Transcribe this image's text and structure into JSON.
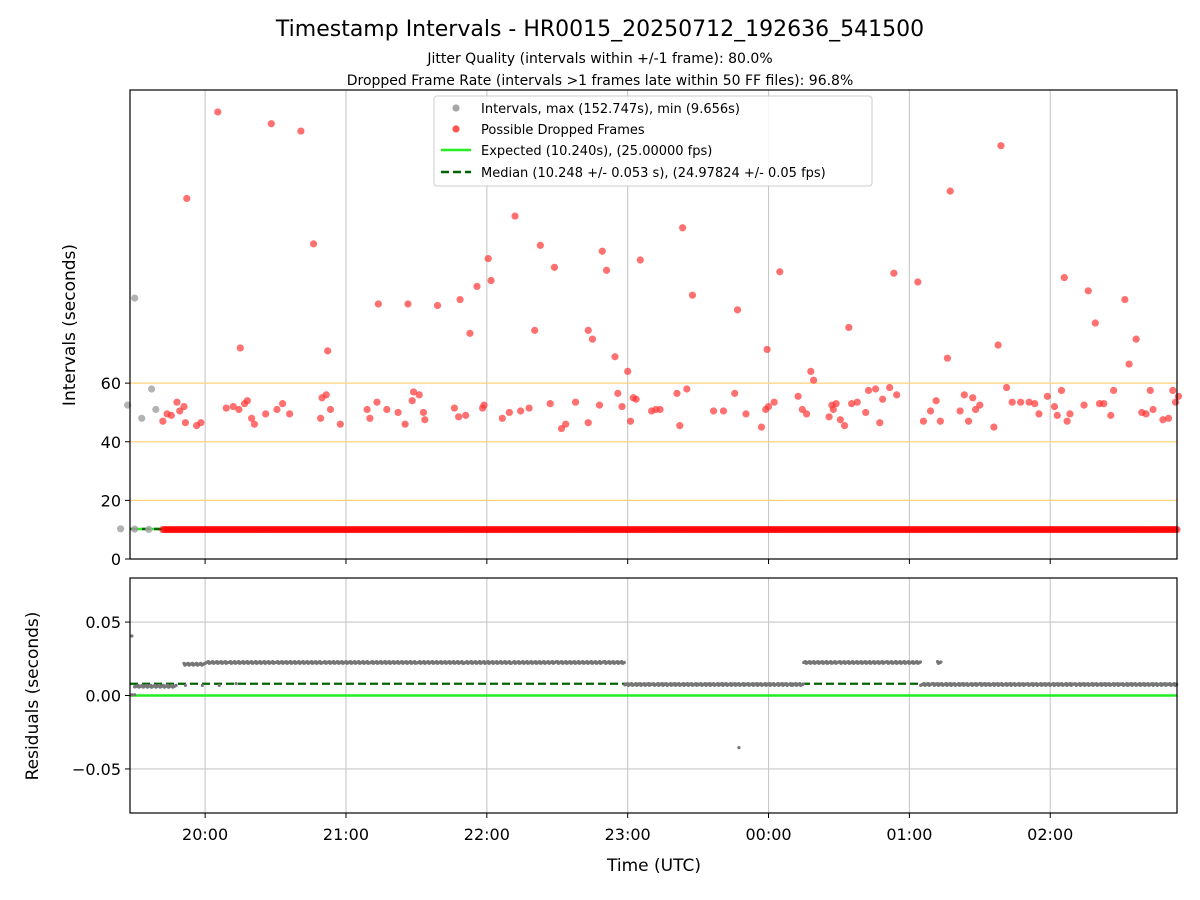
{
  "chart_data": [
    {
      "type": "scatter",
      "panel": "intervals",
      "title": "Timestamp Intervals - HR0015_20250712_192636_541500",
      "subtitle_lines": [
        "Jitter Quality (intervals within +/-1 frame): 80.0%",
        "Dropped Frame Rate (intervals >1 frames late within 50 FF files): 96.8%"
      ],
      "ylabel": "Intervals (seconds)",
      "xlabel": "",
      "x_start": "19:27",
      "x_end": "02:52",
      "xlim_hours": [
        -0.5333,
        6.9
      ],
      "ylim": [
        0,
        160
      ],
      "yticks": [
        0,
        20,
        40,
        60
      ],
      "xtick_labels": [
        "20:00",
        "21:00",
        "22:00",
        "23:00",
        "00:00",
        "01:00",
        "02:00"
      ],
      "xticks_hours": [
        0,
        1,
        2,
        3,
        4,
        5,
        6
      ],
      "grid": "vertical",
      "threshold_lines": [
        20,
        40,
        60
      ],
      "threshold_color": "#ffd27a",
      "legend_position": "upper center",
      "legend": [
        {
          "label": "Intervals, max (152.747s), min (9.656s)",
          "marker": "dot",
          "color": "#a6a6a6"
        },
        {
          "label": "Possible Dropped Frames",
          "marker": "dot",
          "color": "#ff5555"
        },
        {
          "label": "Expected (10.240s), (25.00000 fps)",
          "marker": "line",
          "color": "#22ee22"
        },
        {
          "label": "Median (10.248 +/- 0.053 s), (24.97824 +/- 0.05 fps)",
          "marker": "dashed",
          "color": "#006400"
        }
      ],
      "expected_line": 10.24,
      "median_line": 10.248,
      "normal_points": [
        {
          "x": -0.55,
          "y": 52.5
        },
        {
          "x": -0.45,
          "y": 48
        },
        {
          "x": -0.38,
          "y": 58
        },
        {
          "x": -0.35,
          "y": 51
        },
        {
          "x": -0.5,
          "y": 89
        },
        {
          "x": -0.6,
          "y": 10.3
        },
        {
          "x": -0.5,
          "y": 10.2
        },
        {
          "x": -0.4,
          "y": 10.1
        }
      ],
      "dropped_points": [
        {
          "x": -0.3,
          "y": 47
        },
        {
          "x": -0.27,
          "y": 49.5
        },
        {
          "x": -0.24,
          "y": 49
        },
        {
          "x": -0.2,
          "y": 53.5
        },
        {
          "x": -0.18,
          "y": 50.5
        },
        {
          "x": -0.15,
          "y": 52
        },
        {
          "x": -0.14,
          "y": 46.5
        },
        {
          "x": -0.13,
          "y": 123
        },
        {
          "x": -0.06,
          "y": 45.5
        },
        {
          "x": -0.03,
          "y": 46.5
        },
        {
          "x": 0.09,
          "y": 152.5
        },
        {
          "x": 0.15,
          "y": 51.5
        },
        {
          "x": 0.2,
          "y": 52
        },
        {
          "x": 0.24,
          "y": 51
        },
        {
          "x": 0.25,
          "y": 72
        },
        {
          "x": 0.28,
          "y": 53
        },
        {
          "x": 0.3,
          "y": 54
        },
        {
          "x": 0.33,
          "y": 48
        },
        {
          "x": 0.35,
          "y": 46
        },
        {
          "x": 0.43,
          "y": 49.5
        },
        {
          "x": 0.47,
          "y": 148.5
        },
        {
          "x": 0.51,
          "y": 51
        },
        {
          "x": 0.55,
          "y": 53
        },
        {
          "x": 0.6,
          "y": 49.5
        },
        {
          "x": 0.68,
          "y": 146
        },
        {
          "x": 0.77,
          "y": 107.5
        },
        {
          "x": 0.82,
          "y": 48
        },
        {
          "x": 0.83,
          "y": 55
        },
        {
          "x": 0.86,
          "y": 56
        },
        {
          "x": 0.87,
          "y": 71
        },
        {
          "x": 0.89,
          "y": 51
        },
        {
          "x": 0.96,
          "y": 46
        },
        {
          "x": 1.15,
          "y": 51
        },
        {
          "x": 1.17,
          "y": 48
        },
        {
          "x": 1.22,
          "y": 53.5
        },
        {
          "x": 1.23,
          "y": 87
        },
        {
          "x": 1.29,
          "y": 51
        },
        {
          "x": 1.37,
          "y": 50
        },
        {
          "x": 1.42,
          "y": 46
        },
        {
          "x": 1.44,
          "y": 87
        },
        {
          "x": 1.47,
          "y": 54
        },
        {
          "x": 1.48,
          "y": 57
        },
        {
          "x": 1.52,
          "y": 56
        },
        {
          "x": 1.55,
          "y": 50
        },
        {
          "x": 1.56,
          "y": 47.5
        },
        {
          "x": 1.65,
          "y": 86.5
        },
        {
          "x": 1.77,
          "y": 51.5
        },
        {
          "x": 1.8,
          "y": 48.5
        },
        {
          "x": 1.81,
          "y": 88.5
        },
        {
          "x": 1.85,
          "y": 49
        },
        {
          "x": 1.88,
          "y": 77
        },
        {
          "x": 1.93,
          "y": 93
        },
        {
          "x": 1.97,
          "y": 51.5
        },
        {
          "x": 1.98,
          "y": 52.5
        },
        {
          "x": 2.01,
          "y": 102.5
        },
        {
          "x": 2.03,
          "y": 95
        },
        {
          "x": 2.11,
          "y": 48
        },
        {
          "x": 2.16,
          "y": 50
        },
        {
          "x": 2.2,
          "y": 117
        },
        {
          "x": 2.24,
          "y": 50.5
        },
        {
          "x": 2.3,
          "y": 51.5
        },
        {
          "x": 2.34,
          "y": 78
        },
        {
          "x": 2.38,
          "y": 107
        },
        {
          "x": 2.45,
          "y": 53
        },
        {
          "x": 2.48,
          "y": 99.5
        },
        {
          "x": 2.53,
          "y": 44.5
        },
        {
          "x": 2.56,
          "y": 46
        },
        {
          "x": 2.63,
          "y": 53.5
        },
        {
          "x": 2.72,
          "y": 46.5
        },
        {
          "x": 2.72,
          "y": 78
        },
        {
          "x": 2.75,
          "y": 75
        },
        {
          "x": 2.8,
          "y": 52.5
        },
        {
          "x": 2.82,
          "y": 105
        },
        {
          "x": 2.85,
          "y": 98.5
        },
        {
          "x": 2.91,
          "y": 69
        },
        {
          "x": 2.93,
          "y": 56.5
        },
        {
          "x": 2.96,
          "y": 52
        },
        {
          "x": 3.0,
          "y": 64
        },
        {
          "x": 3.02,
          "y": 47
        },
        {
          "x": 3.04,
          "y": 55
        },
        {
          "x": 3.06,
          "y": 54.5
        },
        {
          "x": 3.09,
          "y": 102
        },
        {
          "x": 3.17,
          "y": 50.5
        },
        {
          "x": 3.2,
          "y": 51
        },
        {
          "x": 3.23,
          "y": 51
        },
        {
          "x": 3.35,
          "y": 56.5
        },
        {
          "x": 3.37,
          "y": 45.5
        },
        {
          "x": 3.39,
          "y": 113
        },
        {
          "x": 3.42,
          "y": 58
        },
        {
          "x": 3.46,
          "y": 90
        },
        {
          "x": 3.61,
          "y": 50.5
        },
        {
          "x": 3.68,
          "y": 50.5
        },
        {
          "x": 3.76,
          "y": 56.5
        },
        {
          "x": 3.78,
          "y": 85
        },
        {
          "x": 3.84,
          "y": 49.5
        },
        {
          "x": 3.95,
          "y": 45
        },
        {
          "x": 3.98,
          "y": 51
        },
        {
          "x": 3.99,
          "y": 71.5
        },
        {
          "x": 4.0,
          "y": 52
        },
        {
          "x": 4.04,
          "y": 53.5
        },
        {
          "x": 4.08,
          "y": 98
        },
        {
          "x": 4.21,
          "y": 55.5
        },
        {
          "x": 4.24,
          "y": 51
        },
        {
          "x": 4.27,
          "y": 49.5
        },
        {
          "x": 4.3,
          "y": 64
        },
        {
          "x": 4.32,
          "y": 61
        },
        {
          "x": 4.43,
          "y": 48.5
        },
        {
          "x": 4.45,
          "y": 52.5
        },
        {
          "x": 4.46,
          "y": 51
        },
        {
          "x": 4.48,
          "y": 53
        },
        {
          "x": 4.51,
          "y": 47.5
        },
        {
          "x": 4.54,
          "y": 45.5
        },
        {
          "x": 4.57,
          "y": 79
        },
        {
          "x": 4.59,
          "y": 53
        },
        {
          "x": 4.63,
          "y": 53.5
        },
        {
          "x": 4.69,
          "y": 50
        },
        {
          "x": 4.71,
          "y": 57.5
        },
        {
          "x": 4.76,
          "y": 58
        },
        {
          "x": 4.79,
          "y": 46.5
        },
        {
          "x": 4.81,
          "y": 54.5
        },
        {
          "x": 4.86,
          "y": 58.5
        },
        {
          "x": 4.89,
          "y": 97.5
        },
        {
          "x": 4.91,
          "y": 56
        },
        {
          "x": 5.06,
          "y": 94.5
        },
        {
          "x": 5.1,
          "y": 47
        },
        {
          "x": 5.15,
          "y": 50.5
        },
        {
          "x": 5.19,
          "y": 54
        },
        {
          "x": 5.22,
          "y": 47
        },
        {
          "x": 5.27,
          "y": 68.5
        },
        {
          "x": 5.29,
          "y": 125.5
        },
        {
          "x": 5.36,
          "y": 50.5
        },
        {
          "x": 5.39,
          "y": 56
        },
        {
          "x": 5.42,
          "y": 47
        },
        {
          "x": 5.45,
          "y": 55
        },
        {
          "x": 5.47,
          "y": 51
        },
        {
          "x": 5.5,
          "y": 52.5
        },
        {
          "x": 5.6,
          "y": 45
        },
        {
          "x": 5.63,
          "y": 73
        },
        {
          "x": 5.65,
          "y": 141
        },
        {
          "x": 5.69,
          "y": 58.5
        },
        {
          "x": 5.73,
          "y": 53.5
        },
        {
          "x": 5.79,
          "y": 53.5
        },
        {
          "x": 5.85,
          "y": 53.5
        },
        {
          "x": 5.89,
          "y": 53
        },
        {
          "x": 5.92,
          "y": 49.5
        },
        {
          "x": 5.98,
          "y": 55.5
        },
        {
          "x": 6.03,
          "y": 52
        },
        {
          "x": 6.05,
          "y": 49
        },
        {
          "x": 6.08,
          "y": 57.5
        },
        {
          "x": 6.1,
          "y": 96
        },
        {
          "x": 6.12,
          "y": 47
        },
        {
          "x": 6.14,
          "y": 49.5
        },
        {
          "x": 6.24,
          "y": 52.5
        },
        {
          "x": 6.27,
          "y": 91.5
        },
        {
          "x": 6.32,
          "y": 80.5
        },
        {
          "x": 6.35,
          "y": 53
        },
        {
          "x": 6.38,
          "y": 53
        },
        {
          "x": 6.43,
          "y": 49
        },
        {
          "x": 6.45,
          "y": 57.5
        },
        {
          "x": 6.53,
          "y": 88.5
        },
        {
          "x": 6.56,
          "y": 66.5
        },
        {
          "x": 6.61,
          "y": 75
        },
        {
          "x": 6.65,
          "y": 50
        },
        {
          "x": 6.68,
          "y": 49.5
        },
        {
          "x": 6.71,
          "y": 57.5
        },
        {
          "x": 6.73,
          "y": 51
        },
        {
          "x": 6.8,
          "y": 47.5
        },
        {
          "x": 6.84,
          "y": 48
        },
        {
          "x": 6.87,
          "y": 57.5
        },
        {
          "x": 6.89,
          "y": 53.5
        },
        {
          "x": 6.91,
          "y": 55.5
        }
      ],
      "baseline_band": {
        "y": 10.3,
        "x_from": -0.3,
        "x_to": 6.9,
        "color": "#ff0000"
      }
    },
    {
      "type": "scatter",
      "panel": "residuals",
      "ylabel": "Residuals (seconds)",
      "xlabel": "Time (UTC)",
      "ylim": [
        -0.08,
        0.08
      ],
      "yticks": [
        -0.05,
        0.0,
        0.05
      ],
      "ytick_labels": [
        "−0.05",
        "0.00",
        "0.05"
      ],
      "grid": "both",
      "expected_line": 0.0,
      "median_line": 0.008,
      "point_color": "#777777",
      "clusters": [
        {
          "x_from": -0.5,
          "x_to": -0.2,
          "y": 0.0075
        },
        {
          "x_from": -0.15,
          "x_to": 2.98,
          "y": 0.0225
        },
        {
          "x_from": -0.5,
          "x_to": 0.3,
          "y": 0.0075,
          "sparse": true
        },
        {
          "x_from": 2.98,
          "x_to": 4.25,
          "y": 0.0075
        },
        {
          "x_from": 4.25,
          "x_to": 5.08,
          "y": 0.0225
        },
        {
          "x_from": 5.2,
          "x_to": 5.23,
          "y": 0.0225
        },
        {
          "x_from": 5.08,
          "x_to": 6.9,
          "y": 0.0075
        }
      ],
      "outliers": [
        {
          "x": -0.52,
          "y": 0.0405
        },
        {
          "x": -0.52,
          "y": 0.0005
        },
        {
          "x": -0.5,
          "y": 0.0005
        },
        {
          "x": 3.79,
          "y": -0.0355
        }
      ]
    }
  ]
}
